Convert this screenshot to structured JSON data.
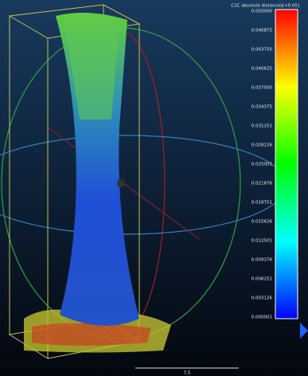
{
  "color_scale": {
    "title": "C2C absolute distances[<0.05]",
    "labels": [
      "0.050000",
      "0.046875",
      "0.043750",
      "0.040625",
      "0.037500",
      "0.034375",
      "0.031251",
      "0.028126",
      "0.025001",
      "0.021876",
      "0.018751",
      "0.015626",
      "0.012501",
      "0.009376",
      "0.006251",
      "0.003126",
      "0.000001"
    ]
  },
  "scale_bar": {
    "label": "7.5"
  }
}
